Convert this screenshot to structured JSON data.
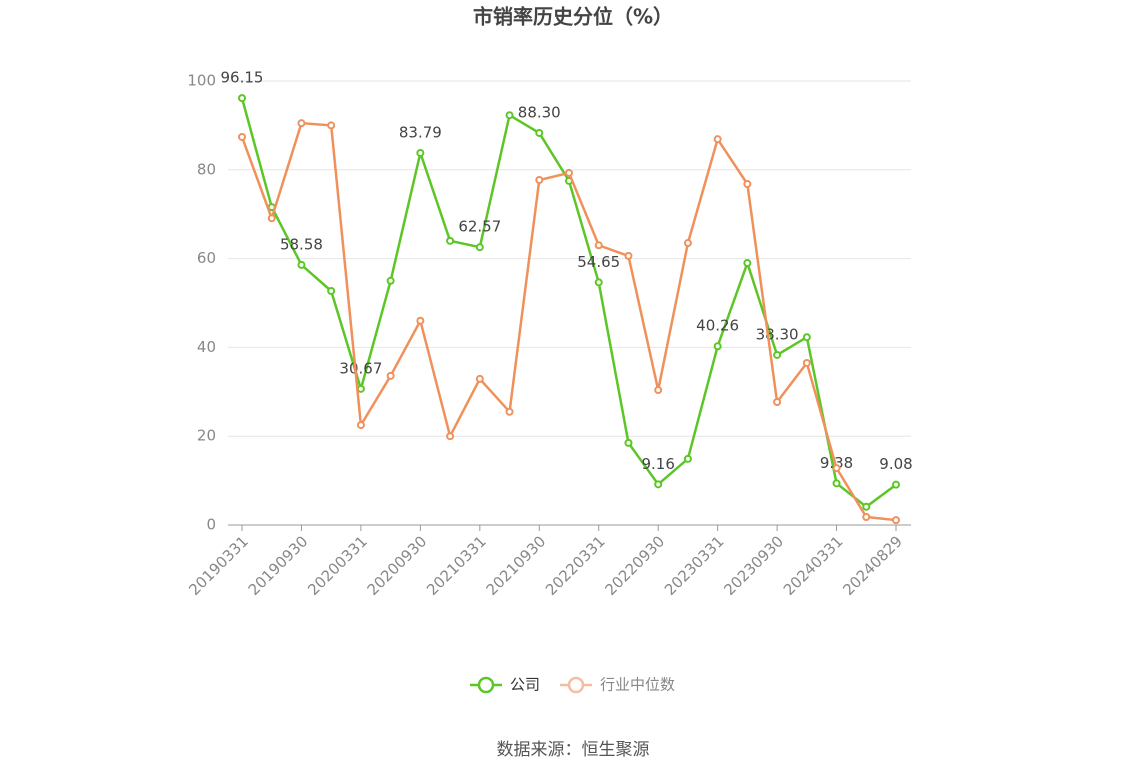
{
  "chart_data": {
    "type": "line",
    "title": "市销率历史分位（%）",
    "categories": [
      "20190331",
      null,
      "20190930",
      null,
      "20200331",
      null,
      "20200930",
      null,
      "20210331",
      null,
      "20210930",
      null,
      "20220331",
      null,
      "20220930",
      null,
      "20230331",
      null,
      "20230930",
      null,
      "20240331",
      null,
      "20240829"
    ],
    "series": [
      {
        "name": "公司",
        "color": "#5cc626",
        "values": [
          96.15,
          71.6,
          58.58,
          52.7,
          30.67,
          55,
          83.79,
          64,
          62.57,
          92.3,
          88.3,
          77.5,
          54.65,
          18.5,
          9.16,
          14.9,
          40.26,
          59,
          38.3,
          42.3,
          9.38,
          4.1,
          9.08
        ],
        "value_labels": [
          "96.15",
          null,
          "58.58",
          null,
          "30.67",
          null,
          "83.79",
          null,
          "62.57",
          null,
          "88.30",
          null,
          "54.65",
          null,
          "9.16",
          null,
          "40.26",
          null,
          "38.30",
          null,
          "9.38",
          null,
          "9.08"
        ]
      },
      {
        "name": "行业中位数",
        "color": "#f0905a",
        "values": [
          87.4,
          69.1,
          90.5,
          90,
          22.5,
          33.6,
          46,
          20,
          32.9,
          25.5,
          77.7,
          79.3,
          63,
          60.6,
          30.4,
          63.5,
          86.9,
          76.8,
          27.7,
          36.5,
          12.8,
          1.8,
          1.1
        ]
      }
    ],
    "ylim": [
      0,
      100
    ],
    "yticks": [
      0,
      20,
      40,
      60,
      80,
      100
    ],
    "grid": true,
    "legend": "bottom",
    "source": "数据来源：恒生聚源"
  }
}
